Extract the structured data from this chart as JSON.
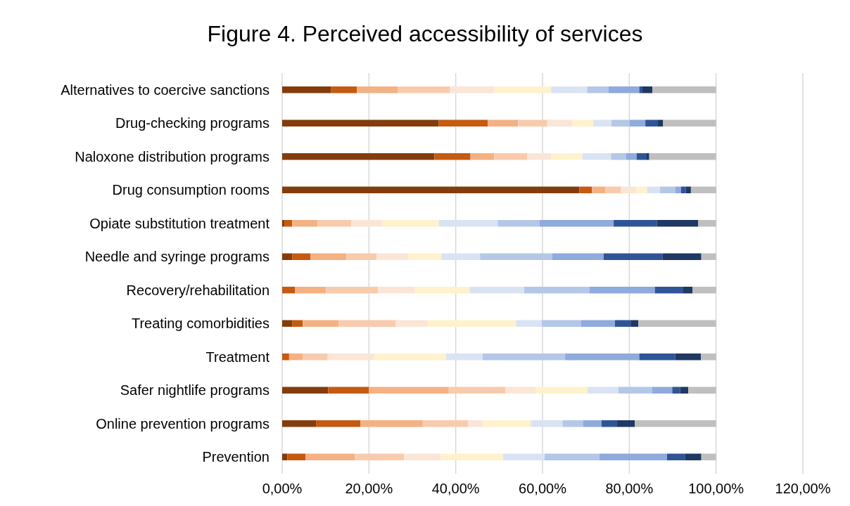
{
  "chart_data": {
    "type": "bar",
    "orientation": "horizontal",
    "stacked": true,
    "title": "Figure 4. Perceived accessibility of services",
    "categories": [
      "Alternatives to coercive sanctions",
      "Drug-checking programs",
      "Naloxone distribution programs",
      "Drug consumption rooms",
      "Opiate substitution treatment",
      "Needle and syringe programs",
      "Recovery/rehabilitation",
      "Treating comorbidities",
      "Treatment",
      "Safer nightlife programs",
      "Online prevention programs",
      "Prevention"
    ],
    "series": [
      {
        "color": "#843c0c",
        "values": [
          11.3,
          36.1,
          35.1,
          68.5,
          0.5,
          2.3,
          null,
          2.3,
          null,
          10.6,
          7.8,
          1.2
        ]
      },
      {
        "color": "#c55a11",
        "values": [
          5.9,
          11.3,
          8.3,
          2.9,
          1.8,
          4.2,
          3.0,
          2.4,
          1.6,
          9.4,
          10.2,
          4.2
        ]
      },
      {
        "color": "#f4b183",
        "values": [
          9.5,
          7.0,
          5.5,
          3.1,
          5.8,
          8.3,
          7.1,
          8.3,
          3.1,
          18.4,
          14.4,
          11.4
        ]
      },
      {
        "color": "#f8cbad",
        "values": [
          12.0,
          6.7,
          7.6,
          3.6,
          7.8,
          7.0,
          12.0,
          13.2,
          5.8,
          13.0,
          10.4,
          11.3
        ]
      },
      {
        "color": "#fbe5d6",
        "values": [
          10.2,
          5.8,
          5.5,
          3.5,
          7.1,
          7.2,
          8.5,
          7.2,
          10.7,
          7.1,
          3.5,
          8.4
        ]
      },
      {
        "color": "#fff2cc",
        "values": [
          13.1,
          4.8,
          7.2,
          2.5,
          13.1,
          7.7,
          12.6,
          20.5,
          16.6,
          11.9,
          11.0,
          14.4
        ]
      },
      {
        "color": "#dae3f3",
        "values": [
          8.3,
          4.2,
          6.6,
          3.0,
          13.6,
          8.9,
          12.6,
          5.9,
          8.4,
          7.1,
          7.3,
          9.6
        ]
      },
      {
        "color": "#b4c7e7",
        "values": [
          4.9,
          4.2,
          3.5,
          3.5,
          9.6,
          16.6,
          15.0,
          9.1,
          19.0,
          7.8,
          4.8,
          12.6
        ]
      },
      {
        "color": "#8faadc",
        "values": [
          7.1,
          3.6,
          2.4,
          1.3,
          17.1,
          11.9,
          15.1,
          7.8,
          17.1,
          4.6,
          4.2,
          15.6
        ]
      },
      {
        "color": "#2f5597",
        "values": [
          0.6,
          2.9,
          2.3,
          1.1,
          10.0,
          13.6,
          6.4,
          3.6,
          8.3,
          1.8,
          3.6,
          4.2
        ]
      },
      {
        "color": "#1f3864",
        "values": [
          2.4,
          1.2,
          0.6,
          1.2,
          9.5,
          8.9,
          2.3,
          1.8,
          5.9,
          1.9,
          4.1,
          3.7
        ]
      },
      {
        "color": "#bfbfbf",
        "values": [
          14.7,
          12.2,
          15.4,
          5.8,
          4.1,
          3.4,
          5.4,
          17.9,
          3.5,
          6.4,
          18.7,
          3.4
        ]
      }
    ],
    "xlim": [
      0,
      120
    ],
    "xticks": [
      {
        "value": 0,
        "label": "0,00%"
      },
      {
        "value": 20,
        "label": "20,00%"
      },
      {
        "value": 40,
        "label": "40,00%"
      },
      {
        "value": 60,
        "label": "60,00%"
      },
      {
        "value": 80,
        "label": "80,00%"
      },
      {
        "value": 100,
        "label": "100,00%"
      },
      {
        "value": 120,
        "label": "120,00%"
      }
    ],
    "grid": "x"
  }
}
